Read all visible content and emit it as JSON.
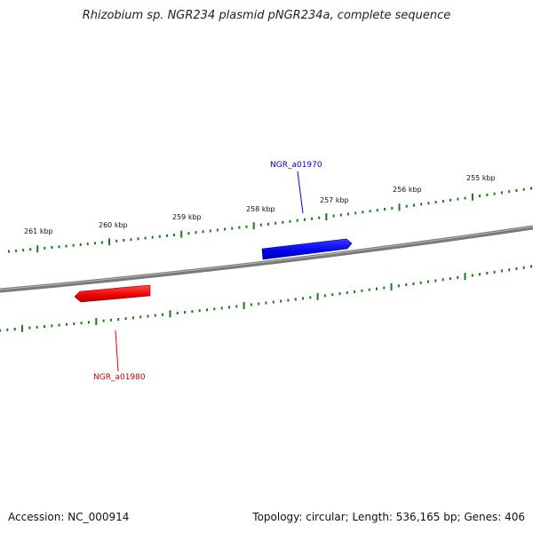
{
  "title": "Rhizobium sp. NGR234 plasmid pNGR234a, complete sequence",
  "footer": {
    "accession": "Accession: NC_000914",
    "summary": "Topology: circular; Length: 536,165 bp; Genes: 406"
  },
  "kbp_labels": [
    "261 kbp",
    "260 kbp",
    "259 kbp",
    "258 kbp",
    "257 kbp",
    "256 kbp",
    "255 kbp"
  ],
  "genes": [
    {
      "name": "NGR_a01970",
      "strand": "forward",
      "color": "#0000ee"
    },
    {
      "name": "NGR_a01980",
      "strand": "reverse",
      "color": "#ee0000"
    }
  ],
  "colors": {
    "backbone": "#808080",
    "ticks": "#1a7a1a",
    "forward_gene": "#0000ee",
    "reverse_gene": "#ee0000"
  }
}
